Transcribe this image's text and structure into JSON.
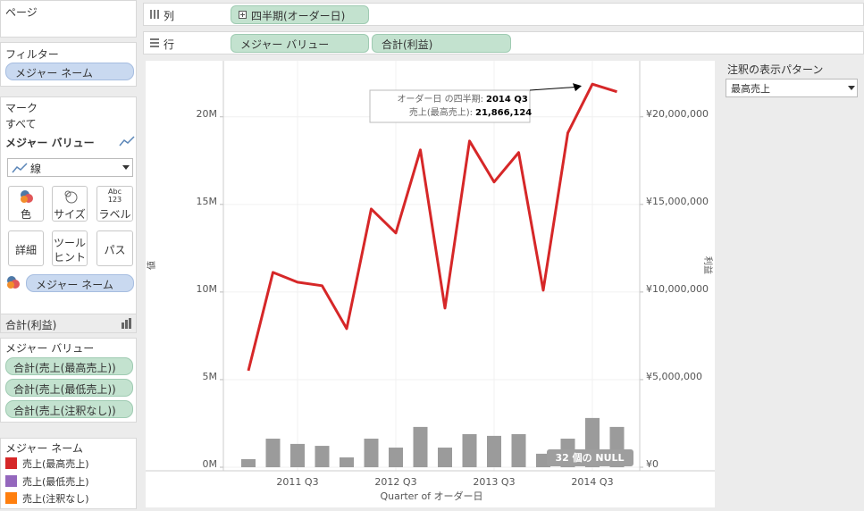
{
  "pages": {
    "title": "ページ"
  },
  "filters": {
    "title": "フィルター",
    "pill": "メジャー ネーム"
  },
  "marks": {
    "title": "マーク",
    "all": "すべて",
    "measure": "メジャー バリュー",
    "mark_type": "線",
    "buttons": {
      "color": "色",
      "size": "サイズ",
      "label": "ラベル",
      "label_icon": [
        "Abc",
        "123"
      ],
      "detail": "詳細",
      "tooltip": [
        "ツール",
        "ヒント"
      ],
      "path": "パス"
    },
    "color_pill": "メジャー ネーム",
    "profit": "合計(利益)"
  },
  "measure_values": {
    "title": "メジャー バリュー",
    "pills": [
      "合計(売上(最高売上))",
      "合計(売上(最低売上))",
      "合計(売上(注釈なし))"
    ]
  },
  "legend": {
    "title": "メジャー ネーム",
    "items": [
      {
        "label": "売上(最高売上)",
        "color": "#d62728"
      },
      {
        "label": "売上(最低売上)",
        "color": "#9467bd"
      },
      {
        "label": "売上(注釈なし)",
        "color": "#ff7f0e"
      }
    ]
  },
  "shelves": {
    "columns": {
      "label": "列",
      "pills": [
        "四半期(オーダー日)"
      ]
    },
    "rows": {
      "label": "行",
      "pills": [
        "メジャー バリュー",
        "合計(利益)"
      ]
    }
  },
  "annotation_panel": {
    "title": "注釈の表示パターン",
    "selected": "最高売上"
  },
  "chart_data": {
    "type": "combo",
    "x_label": "Quarter of オーダー日",
    "y_label": "値",
    "y2_label": "利益",
    "categories": [
      null,
      null,
      "2011 Q3",
      null,
      null,
      null,
      "2012 Q3",
      null,
      null,
      null,
      "2013 Q3",
      null,
      null,
      null,
      "2014 Q3",
      null
    ],
    "ylim": [
      0,
      23200000
    ],
    "yticks": [
      {
        "value": 0,
        "label": "0M"
      },
      {
        "value": 5000000,
        "label": "5M"
      },
      {
        "value": 10000000,
        "label": "10M"
      },
      {
        "value": 15000000,
        "label": "15M"
      },
      {
        "value": 20000000,
        "label": "20M"
      }
    ],
    "y2lim": [
      0,
      23200000
    ],
    "y2ticks": [
      {
        "value": 0,
        "label": "¥0"
      },
      {
        "value": 5000000,
        "label": "¥5,000,000"
      },
      {
        "value": 10000000,
        "label": "¥10,000,000"
      },
      {
        "value": 15000000,
        "label": "¥15,000,000"
      },
      {
        "value": 20000000,
        "label": "¥20,000,000"
      }
    ],
    "grid": true,
    "series": [
      {
        "type": "bar",
        "axis": "y2",
        "color": "#9b9b9b",
        "values": [
          460000,
          1630000,
          1330000,
          1220000,
          560000,
          1630000,
          1120000,
          2300000,
          1120000,
          1890000,
          1790000,
          1890000,
          770000,
          1630000,
          2810000,
          2300000
        ]
      },
      {
        "type": "line",
        "color": "#d62728",
        "values": [
          5510000,
          11120000,
          10560000,
          10360000,
          7910000,
          14740000,
          13370000,
          18110000,
          9080000,
          18620000,
          16280000,
          17960000,
          10100000,
          19080000,
          21866124,
          21430000
        ]
      }
    ],
    "annotation": {
      "point": 14,
      "key1": "オーダー日 の四半期:",
      "val1": "2014 Q3",
      "key2": "売上(最高売上):",
      "val2": "21,866,124"
    },
    "null_badge": "32 個の NULL"
  }
}
